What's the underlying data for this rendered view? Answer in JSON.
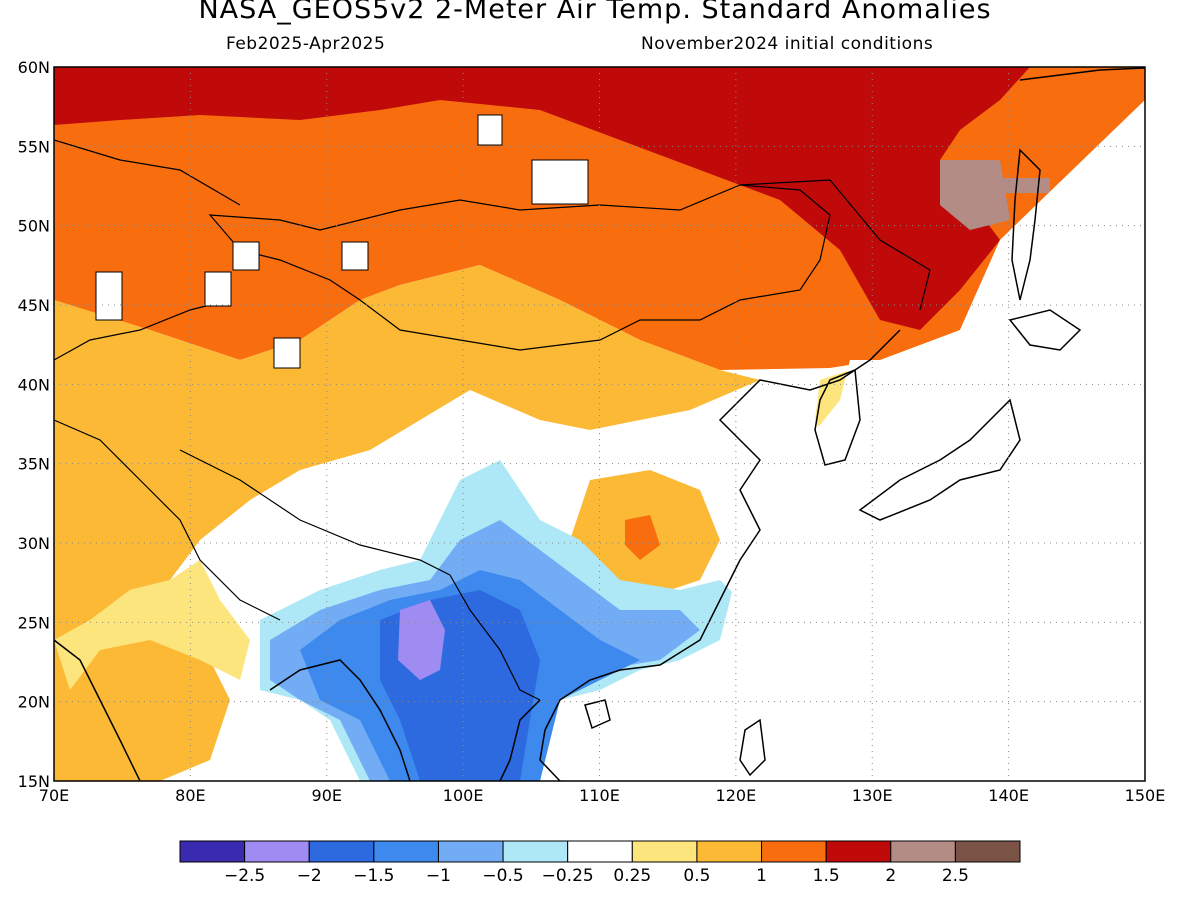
{
  "header": {
    "title": "NASA_GEOS5v2 2-Meter Air Temp. Standard Anomalies",
    "period": "Feb2025-Apr2025",
    "init": "November2024 initial conditions"
  },
  "axes": {
    "lat_labels": [
      "15N",
      "20N",
      "25N",
      "30N",
      "35N",
      "40N",
      "45N",
      "50N",
      "55N",
      "60N"
    ],
    "lon_labels": [
      "70E",
      "80E",
      "90E",
      "100E",
      "110E",
      "120E",
      "130E",
      "140E",
      "150E"
    ]
  },
  "map_extent": {
    "lon": [
      70,
      150
    ],
    "lat": [
      15,
      60
    ]
  },
  "colorbar": {
    "colors": [
      "#3a2ab0",
      "#9f8cf2",
      "#2d6ae0",
      "#3d89ee",
      "#71acf5",
      "#aee8f6",
      "#ffffff",
      "#fde57d",
      "#fbb935",
      "#f86d0e",
      "#c00a0a",
      "#b38c86",
      "#7a5346"
    ],
    "labels": [
      "-2.5",
      "-2",
      "-1.5",
      "-1",
      "-0.5",
      "-0.25",
      "0.25",
      "0.5",
      "1",
      "1.5",
      "2",
      "2.5"
    ]
  },
  "palette": {
    "dark_red": "#c00a0a",
    "orange": "#f86d0e",
    "light_orange": "#fbb935",
    "yellow": "#fde57d",
    "light_cyan": "#aee8f6",
    "light_blue": "#71acf5",
    "blue": "#3d89ee",
    "dark_blue": "#2d6ae0",
    "lavender": "#9f8cf2",
    "brown": "#b38c86"
  }
}
